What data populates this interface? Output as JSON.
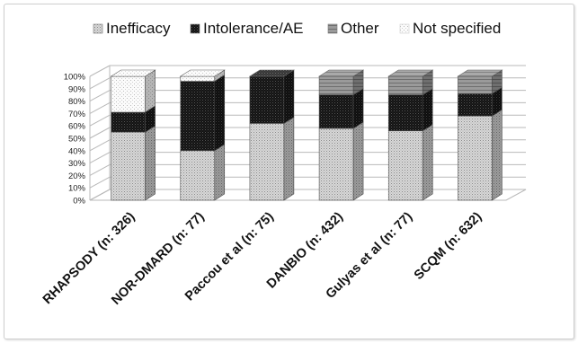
{
  "chart_data": {
    "type": "bar",
    "stacked": true,
    "percent": true,
    "style": "3d",
    "categories": [
      "RHAPSODY (n: 326)",
      "NOR-DMARD (n: 77)",
      "Paccou et al (n: 75)",
      "DANBIO (n: 432)",
      "Gulyas et al (n: 77)",
      "SCQM (n: 632)"
    ],
    "series": [
      {
        "name": "Inefficacy",
        "values": [
          55,
          40,
          62,
          58,
          56,
          68
        ],
        "color": "#cfcfcf"
      },
      {
        "name": "Intolerance/AE",
        "values": [
          16,
          56,
          38,
          27,
          29,
          18
        ],
        "color": "#151515"
      },
      {
        "name": "Other",
        "values": [
          0,
          0,
          0,
          15,
          15,
          14
        ],
        "color": "#8e8e8e"
      },
      {
        "name": "Not specified",
        "values": [
          29,
          4,
          0,
          0,
          0,
          0
        ],
        "color": "#f7f7f7"
      }
    ],
    "y_ticks": [
      "0%",
      "10%",
      "20%",
      "30%",
      "40%",
      "50%",
      "60%",
      "70%",
      "80%",
      "90%",
      "100%"
    ],
    "ylim": [
      0,
      100
    ],
    "grid": true,
    "legend_position": "top"
  }
}
